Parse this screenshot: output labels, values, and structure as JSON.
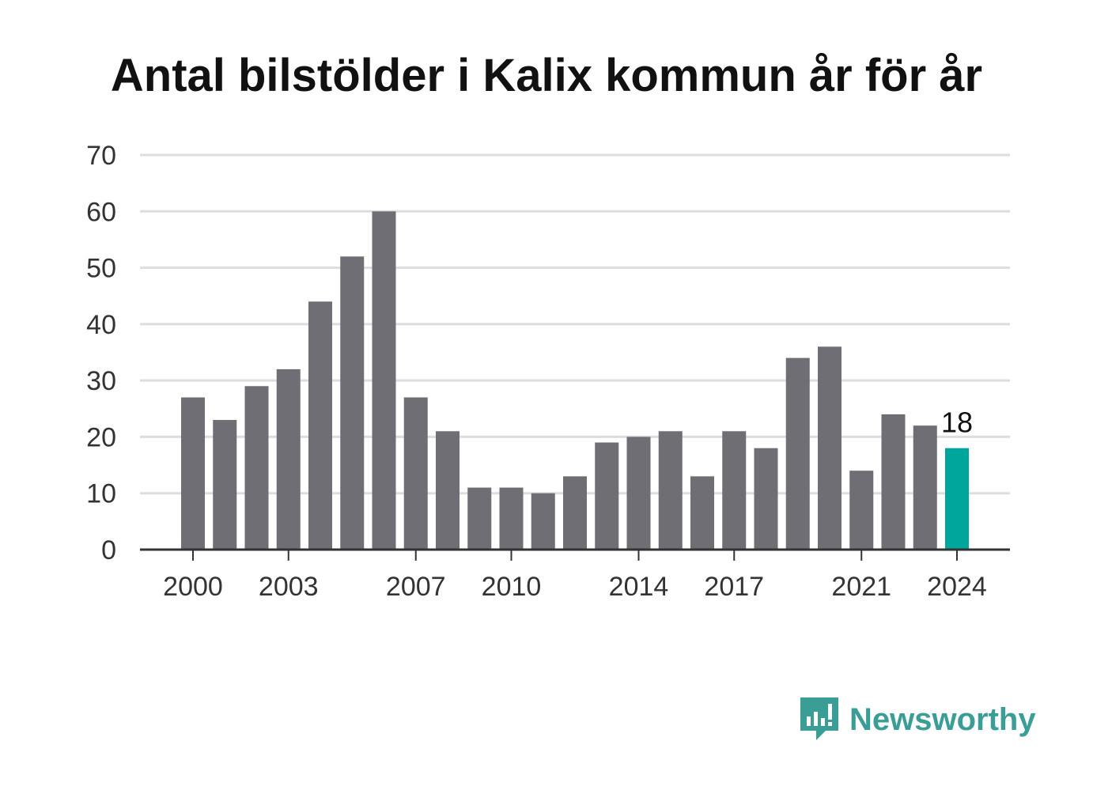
{
  "title": "Antal bilstölder i Kalix kommun år för år",
  "brand": {
    "name": "Newsworthy",
    "icon": "newsworthy-logo-icon"
  },
  "colors": {
    "bar": "#6f6e74",
    "highlight": "#00a59b",
    "grid": "#dddddd",
    "axis": "#333333",
    "text": "#333333",
    "brand": "#3a9e96"
  },
  "chart_data": {
    "type": "bar",
    "title": "Antal bilstölder i Kalix kommun år för år",
    "xlabel": "",
    "ylabel": "",
    "categories": [
      2000,
      2001,
      2002,
      2003,
      2004,
      2005,
      2006,
      2007,
      2008,
      2009,
      2010,
      2011,
      2012,
      2013,
      2014,
      2015,
      2016,
      2017,
      2018,
      2019,
      2020,
      2021,
      2022,
      2023,
      2024
    ],
    "values": [
      27,
      23,
      29,
      32,
      44,
      52,
      60,
      27,
      21,
      11,
      11,
      10,
      13,
      19,
      20,
      21,
      13,
      21,
      18,
      34,
      36,
      14,
      24,
      22,
      18
    ],
    "ylim": [
      0,
      70
    ],
    "yticks": [
      0,
      10,
      20,
      30,
      40,
      50,
      60,
      70
    ],
    "xticks": [
      2000,
      2003,
      2007,
      2010,
      2014,
      2017,
      2021,
      2024
    ],
    "highlight": {
      "category": 2024,
      "label": "18"
    },
    "grid": true,
    "legend": "none"
  }
}
